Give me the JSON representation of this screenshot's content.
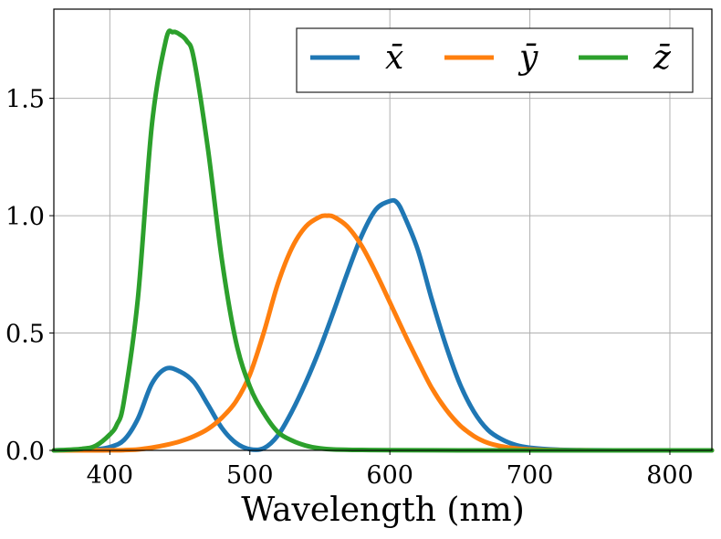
{
  "chart_data": {
    "type": "line",
    "title": "",
    "xlabel": "Wavelength (nm)",
    "ylabel": "",
    "xlim": [
      360,
      830
    ],
    "ylim": [
      0,
      1.88
    ],
    "grid": true,
    "legend_position": "top-right",
    "legend_columns": 3,
    "xticks": [
      400,
      500,
      600,
      700,
      800
    ],
    "xtick_labels": [
      "400",
      "500",
      "600",
      "700",
      "800"
    ],
    "yticks": [
      0.0,
      0.5,
      1.0,
      1.5
    ],
    "ytick_labels": [
      "0.0",
      "0.5",
      "1.0",
      "1.5"
    ],
    "series": [
      {
        "name": "x̄",
        "color": "#1f77b4",
        "x": [
          360,
          380,
          390,
          400,
          410,
          420,
          430,
          440,
          450,
          460,
          470,
          480,
          490,
          500,
          510,
          520,
          530,
          540,
          550,
          560,
          570,
          580,
          590,
          600,
          605,
          610,
          620,
          630,
          640,
          650,
          660,
          670,
          680,
          690,
          700,
          720,
          740,
          760,
          800,
          830
        ],
        "y": [
          0.0001,
          0.0014,
          0.0042,
          0.0143,
          0.0435,
          0.1344,
          0.2839,
          0.3483,
          0.3362,
          0.2908,
          0.1954,
          0.0956,
          0.032,
          0.0049,
          0.0093,
          0.0633,
          0.1655,
          0.2904,
          0.4334,
          0.5945,
          0.7621,
          0.9163,
          1.0263,
          1.0622,
          1.0567,
          1.0026,
          0.8544,
          0.6424,
          0.4479,
          0.2835,
          0.1649,
          0.0874,
          0.0468,
          0.0227,
          0.0114,
          0.0029,
          0.0007,
          0.0002,
          0.0,
          0.0
        ]
      },
      {
        "name": "ȳ",
        "color": "#ff7f0e",
        "x": [
          360,
          380,
          390,
          400,
          410,
          420,
          430,
          440,
          450,
          460,
          470,
          480,
          490,
          500,
          510,
          520,
          530,
          540,
          550,
          555,
          560,
          570,
          580,
          590,
          600,
          610,
          620,
          630,
          640,
          650,
          660,
          670,
          680,
          690,
          700,
          720,
          740,
          760,
          800,
          830
        ],
        "y": [
          0.0,
          0.0,
          0.0001,
          0.0004,
          0.0012,
          0.004,
          0.0116,
          0.023,
          0.038,
          0.06,
          0.091,
          0.139,
          0.208,
          0.323,
          0.503,
          0.71,
          0.862,
          0.954,
          0.995,
          1.0,
          0.995,
          0.952,
          0.87,
          0.757,
          0.631,
          0.503,
          0.381,
          0.265,
          0.175,
          0.107,
          0.061,
          0.032,
          0.017,
          0.0082,
          0.0041,
          0.001,
          0.0003,
          0.0001,
          0.0,
          0.0
        ]
      },
      {
        "name": "z̄",
        "color": "#2ca02c",
        "x": [
          360,
          380,
          390,
          400,
          405,
          410,
          420,
          430,
          440,
          445,
          450,
          455,
          460,
          470,
          480,
          490,
          500,
          510,
          520,
          530,
          540,
          550,
          560,
          580,
          600,
          650,
          700,
          800,
          830
        ],
        "y": [
          0.0,
          0.0065,
          0.02,
          0.0679,
          0.11,
          0.2074,
          0.6456,
          1.3856,
          1.7471,
          1.782,
          1.772,
          1.744,
          1.6692,
          1.2876,
          0.813,
          0.4652,
          0.272,
          0.1582,
          0.0782,
          0.0422,
          0.0203,
          0.0087,
          0.0039,
          0.0017,
          0.0008,
          0.0001,
          0.0,
          0.0,
          0.0
        ]
      }
    ]
  }
}
